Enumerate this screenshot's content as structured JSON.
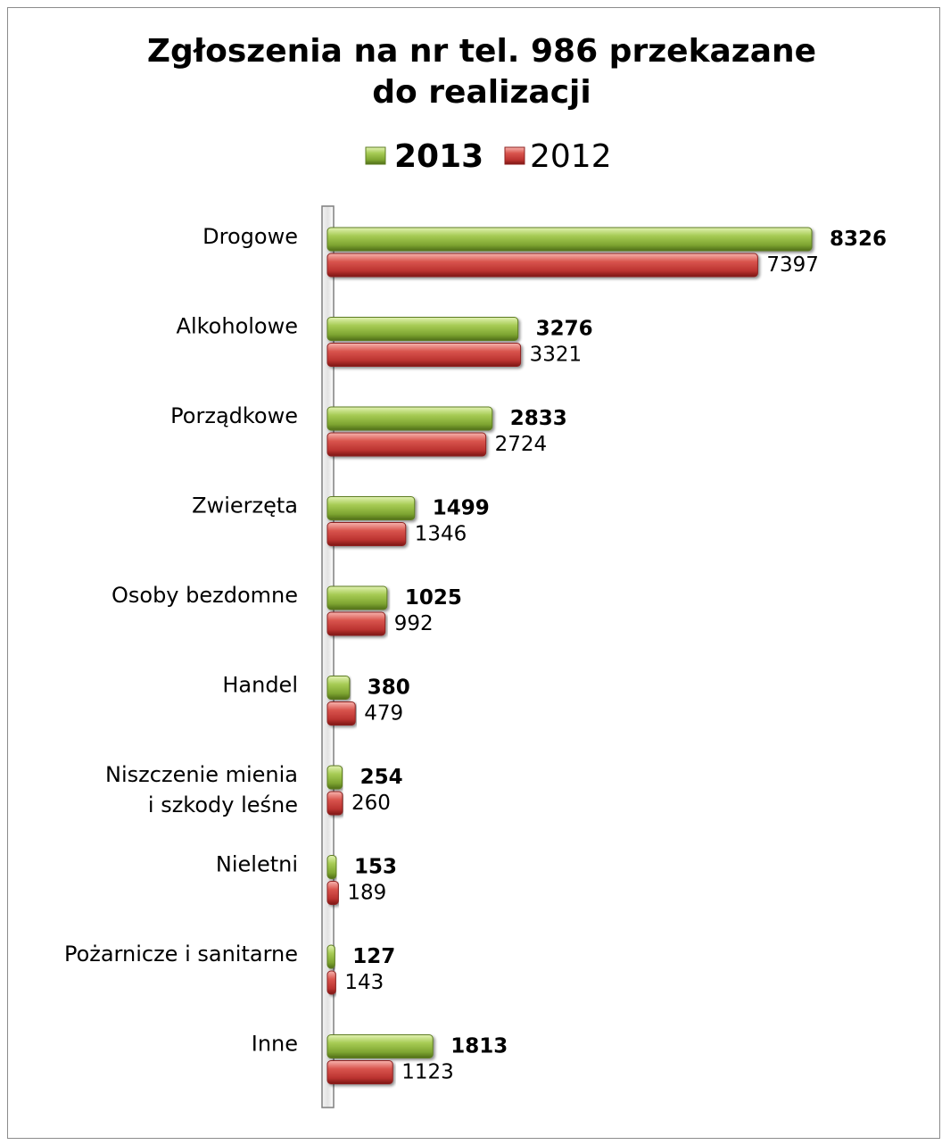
{
  "chart_data": {
    "type": "bar",
    "orientation": "horizontal",
    "title_lines": [
      "Zgłoszenia na nr tel. 986 przekazane",
      "do realizacji"
    ],
    "categories": [
      [
        "Drogowe"
      ],
      [
        "Alkoholowe"
      ],
      [
        "Porządkowe"
      ],
      [
        "Zwierzęta"
      ],
      [
        "Osoby bezdomne"
      ],
      [
        "Handel"
      ],
      [
        "Niszczenie mienia",
        "i szkody leśne"
      ],
      [
        "Nieletni"
      ],
      [
        "Pożarnicze i sanitarne"
      ],
      [
        "Inne"
      ]
    ],
    "series": [
      {
        "name": "2013",
        "color": "#8db53a",
        "values": [
          8326,
          3276,
          2833,
          1499,
          1025,
          380,
          254,
          153,
          127,
          1813
        ]
      },
      {
        "name": "2012",
        "color": "#c83c3c",
        "values": [
          7397,
          3321,
          2724,
          1346,
          992,
          479,
          260,
          189,
          143,
          1123
        ]
      }
    ],
    "xlim": [
      0,
      8326
    ],
    "legend": "top",
    "grid": false
  }
}
